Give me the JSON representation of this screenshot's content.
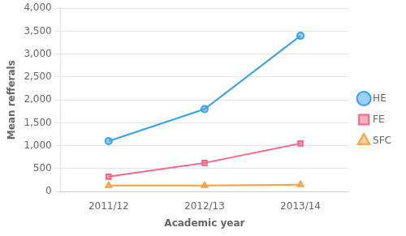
{
  "chart_data": {
    "type": "line",
    "xlabel": "Academic year",
    "ylabel": "Mean refferals",
    "categories": [
      "2011/12",
      "2012/13",
      "2013/14"
    ],
    "series": [
      {
        "name": "HE",
        "values": [
          1100,
          1800,
          3400
        ],
        "marker": "circle"
      },
      {
        "name": "FE",
        "values": [
          325,
          625,
          1050
        ],
        "marker": "square"
      },
      {
        "name": "SFC",
        "values": [
          130,
          130,
          150
        ],
        "marker": "triangle"
      }
    ],
    "ylim": [
      0,
      4000
    ],
    "yticks": [
      0,
      500,
      1000,
      1500,
      2000,
      2500,
      3000,
      3500,
      4000
    ],
    "grid": "y",
    "legend": "right"
  }
}
